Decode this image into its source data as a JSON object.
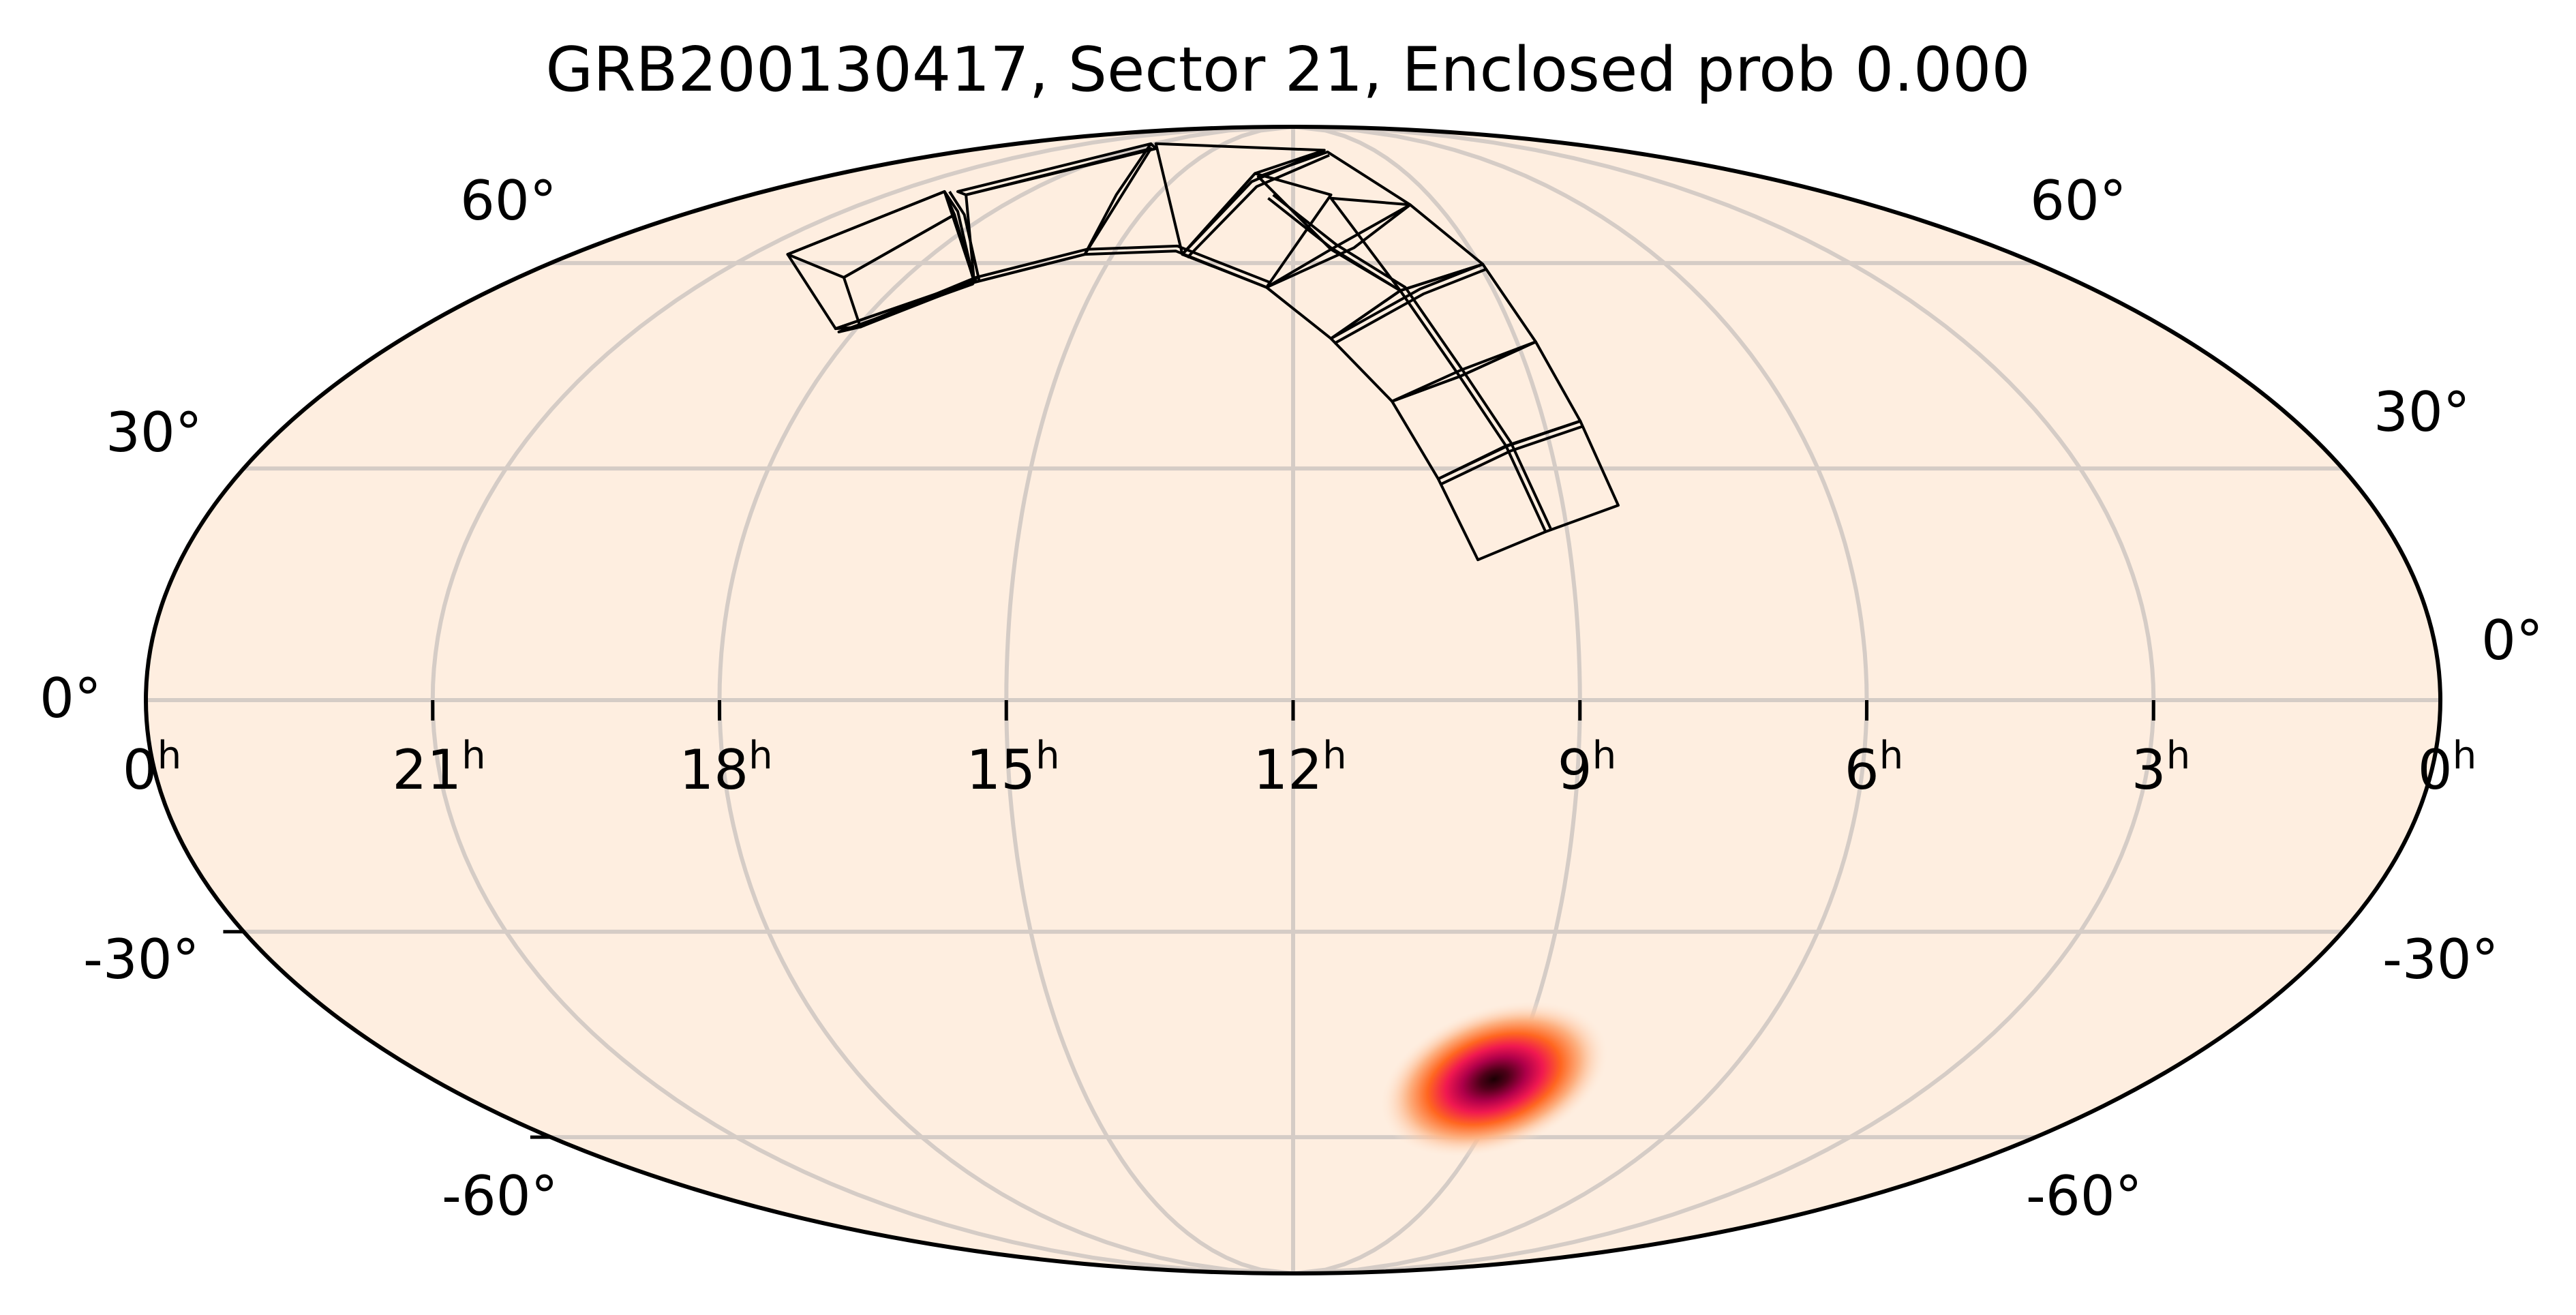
{
  "chart_data": {
    "type": "heatmap",
    "projection": "mollweide",
    "title": "GRB200130417, Sector 21, Enclosed prob 0.000",
    "xlabel": "",
    "ylabel": "",
    "grid": true,
    "x_ticks": [
      "0h",
      "21h",
      "18h",
      "15h",
      "12h",
      "9h",
      "6h",
      "3h",
      "0h"
    ],
    "x_tick_labels": [
      {
        "num": "0",
        "sup": "h"
      },
      {
        "num": "21",
        "sup": "h"
      },
      {
        "num": "18",
        "sup": "h"
      },
      {
        "num": "15",
        "sup": "h"
      },
      {
        "num": "12",
        "sup": "h"
      },
      {
        "num": "9",
        "sup": "h"
      },
      {
        "num": "6",
        "sup": "h"
      },
      {
        "num": "3",
        "sup": "h"
      },
      {
        "num": "0",
        "sup": "h"
      }
    ],
    "y_ticks_left": [
      "60°",
      "30°",
      "0°",
      "-30°",
      "-60°"
    ],
    "y_ticks_right": [
      "60°",
      "30°",
      "0°",
      "-30°",
      "-60°"
    ],
    "ra_direction": "increasing right-to-left (astronomical convention)",
    "probability_hotspot": {
      "ra_hours": 9.6,
      "dec_deg": -52,
      "description": "GRB localization probability peak (dark red/black core, orange halo)"
    },
    "enclosed_probability": 0.0,
    "tess_sector": 21,
    "footprint": {
      "description": "TESS Sector 21 camera/CCD footprint outlines (16 CCD tiles in 4 cameras) arcing across northern sky from ~RA 17h Dec +50 to ~RA 8.5h Dec +15",
      "tile_count": 16
    },
    "colors": {
      "background_fill": "#feeee0",
      "gridline": "#d5ccc6",
      "outline": "#000000",
      "hotspot_core": "#2a0006",
      "hotspot_mid": "#d10050",
      "hotspot_outer": "#ff6a1a",
      "hotspot_halo": "#fcc6a0"
    }
  }
}
